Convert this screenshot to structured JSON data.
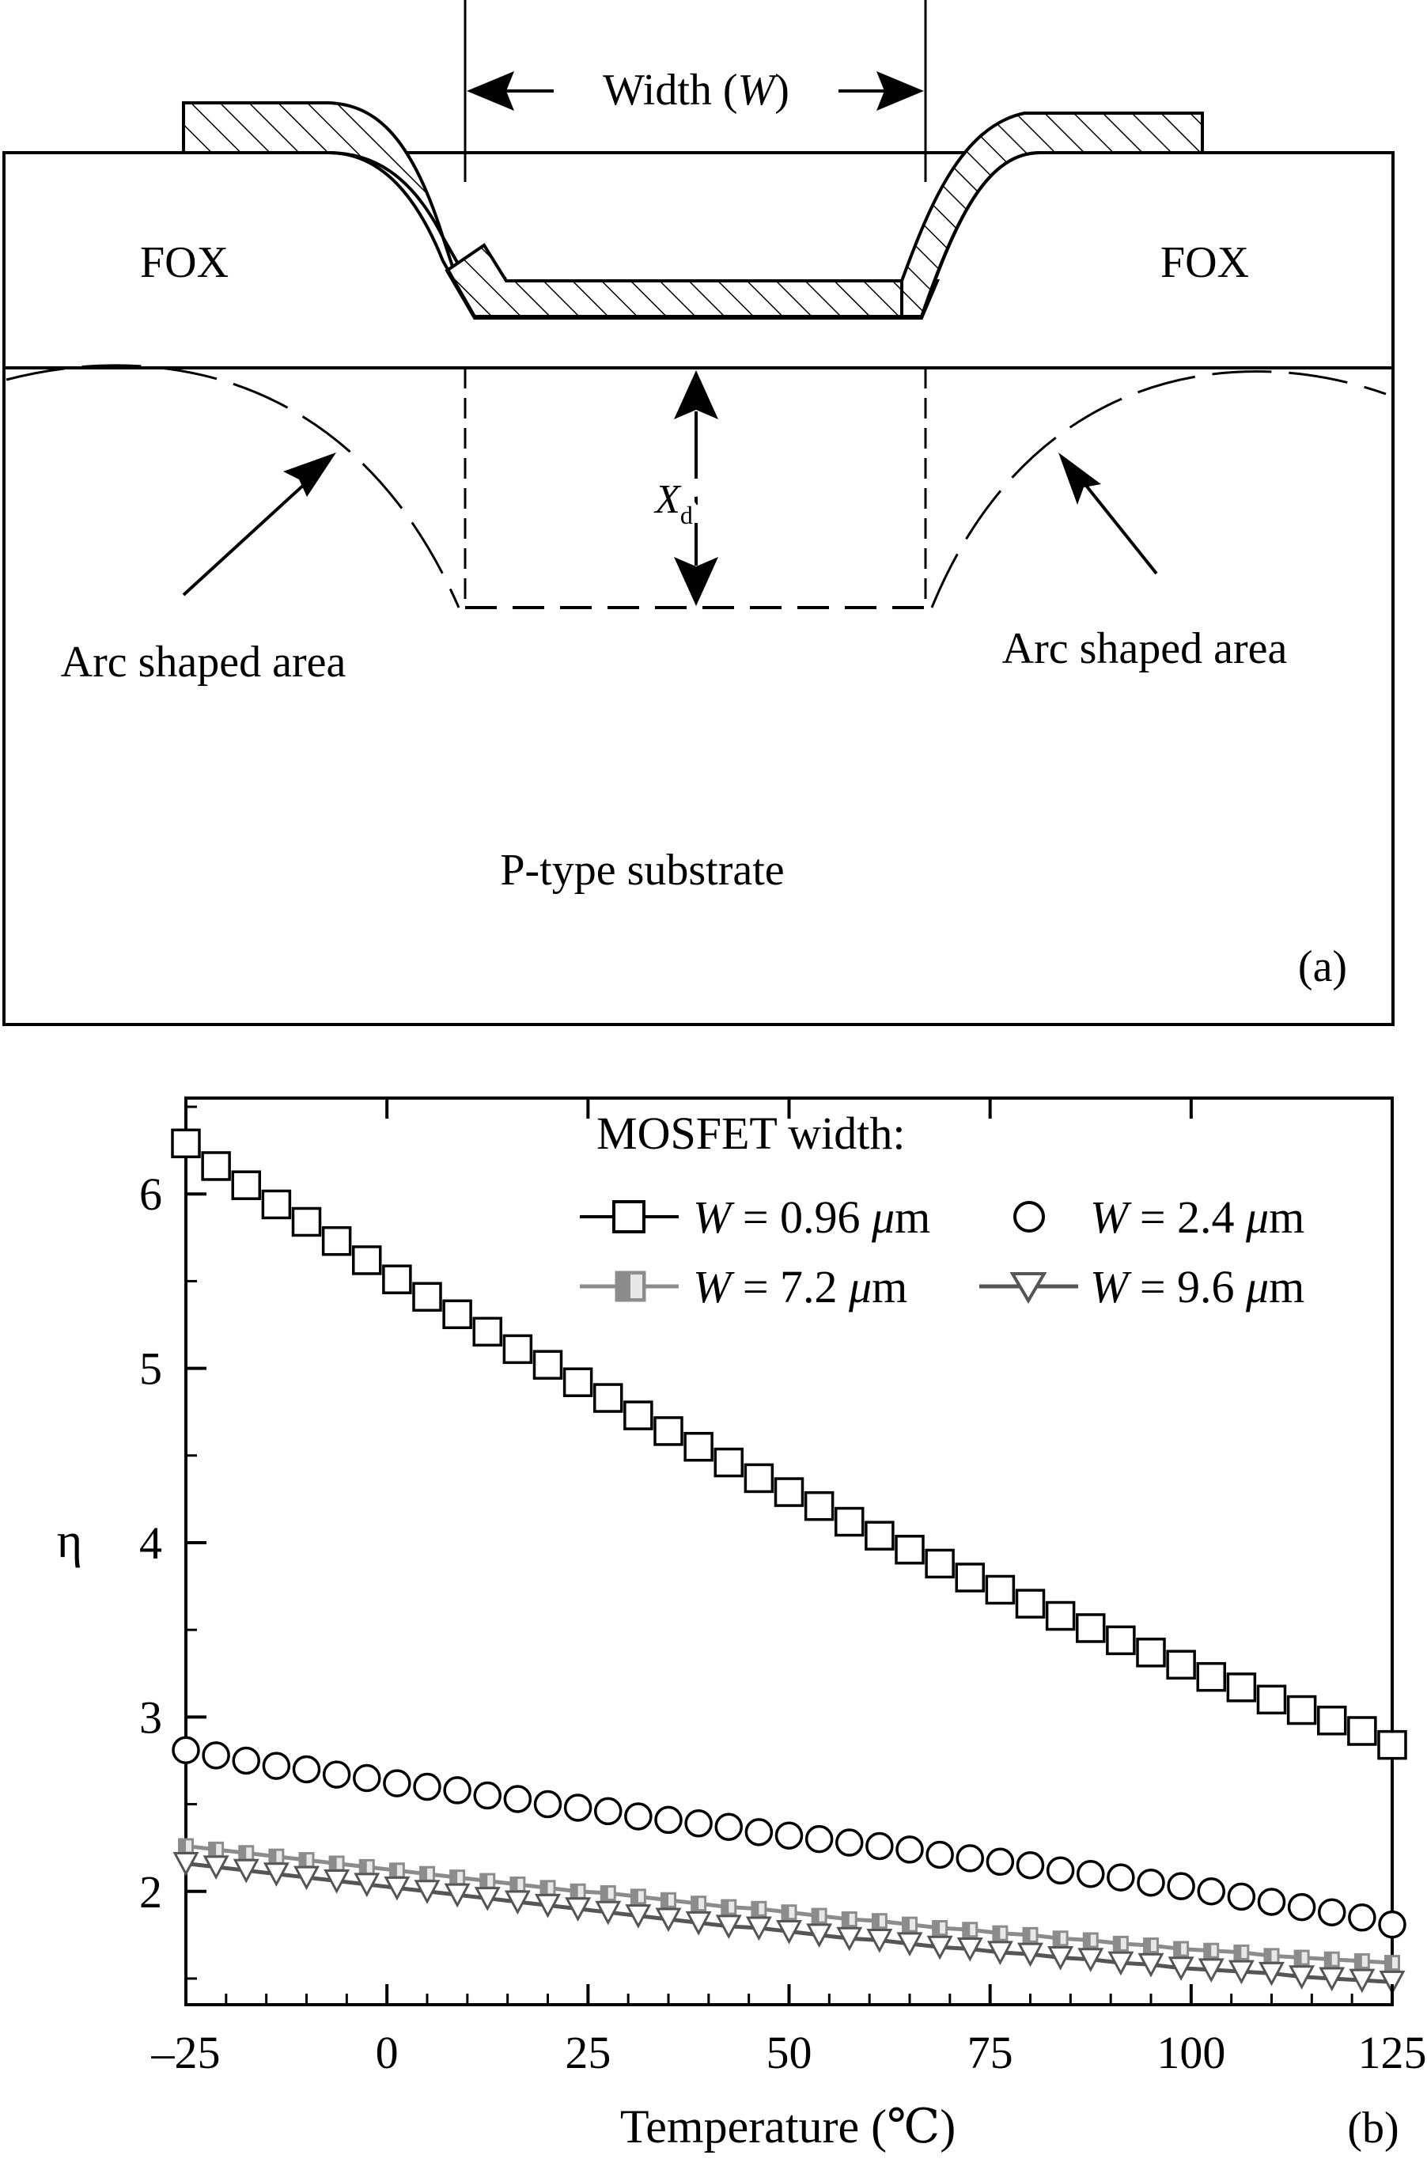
{
  "panel_a": {
    "left_oxide": "FOX",
    "right_oxide": "FOX",
    "width_label_prefix": "Width (",
    "width_label_var": "W",
    "width_label_suffix": ")",
    "depletion_var": "X",
    "depletion_sub": "d",
    "left_arc_label": "Arc shaped area",
    "right_arc_label": "Arc shaped area",
    "substrate_label": "P-type substrate",
    "panel_tag": "(a)"
  },
  "panel_b": {
    "panel_tag": "(b)",
    "legend_title": "MOSFET width:",
    "eq_text": " = ",
    "mu": "μ",
    "unit_m": "m"
  },
  "chart_data": {
    "type": "scatter",
    "title": "",
    "xlabel": "Temperature (℃)",
    "ylabel": "η",
    "xlim": [
      -25,
      125
    ],
    "ylim": [
      1.35,
      6.55
    ],
    "xticks": [
      -25,
      0,
      25,
      50,
      75,
      100,
      125
    ],
    "yticks": [
      2,
      3,
      4,
      5,
      6
    ],
    "grid": false,
    "legend_position": "top-right",
    "x_start": -25,
    "x_step": 3.75,
    "series": [
      {
        "name": "W = 0.96 μm",
        "var": "W",
        "value": "0.96",
        "unit": "μm",
        "marker": "square-open",
        "color": "#000000",
        "line": false,
        "values": [
          6.29,
          6.16,
          6.05,
          5.94,
          5.84,
          5.73,
          5.62,
          5.51,
          5.41,
          5.31,
          5.21,
          5.11,
          5.02,
          4.92,
          4.83,
          4.73,
          4.64,
          4.55,
          4.46,
          4.37,
          4.29,
          4.21,
          4.12,
          4.04,
          3.96,
          3.88,
          3.8,
          3.73,
          3.65,
          3.58,
          3.51,
          3.44,
          3.37,
          3.3,
          3.23,
          3.17,
          3.1,
          3.04,
          2.98,
          2.92,
          2.84
        ]
      },
      {
        "name": "W = 2.4 μm",
        "var": "W",
        "value": "2.4",
        "unit": "μm",
        "marker": "circle-open",
        "color": "#000000",
        "line": false,
        "values": [
          2.81,
          2.78,
          2.75,
          2.72,
          2.7,
          2.67,
          2.65,
          2.62,
          2.6,
          2.58,
          2.55,
          2.53,
          2.5,
          2.48,
          2.46,
          2.43,
          2.41,
          2.39,
          2.37,
          2.34,
          2.32,
          2.3,
          2.28,
          2.26,
          2.24,
          2.21,
          2.19,
          2.17,
          2.15,
          2.12,
          2.1,
          2.08,
          2.05,
          2.03,
          2.0,
          1.97,
          1.94,
          1.91,
          1.88,
          1.85,
          1.81
        ]
      },
      {
        "name": "W = 7.2 μm",
        "var": "W",
        "value": "7.2",
        "unit": "μm",
        "marker": "square-half",
        "color": "#8c8c8c",
        "line": true,
        "values": [
          2.26,
          2.24,
          2.22,
          2.2,
          2.18,
          2.16,
          2.14,
          2.12,
          2.1,
          2.08,
          2.06,
          2.04,
          2.02,
          2.0,
          1.99,
          1.97,
          1.95,
          1.93,
          1.91,
          1.9,
          1.88,
          1.86,
          1.84,
          1.83,
          1.81,
          1.79,
          1.78,
          1.76,
          1.75,
          1.73,
          1.72,
          1.7,
          1.69,
          1.67,
          1.66,
          1.65,
          1.63,
          1.62,
          1.61,
          1.6,
          1.59
        ]
      },
      {
        "name": "W = 9.6 μm",
        "var": "W",
        "value": "9.6",
        "unit": "μm",
        "marker": "triangle-down-open",
        "color": "#555555",
        "line": true,
        "values": [
          2.16,
          2.14,
          2.12,
          2.1,
          2.08,
          2.06,
          2.04,
          2.02,
          2.0,
          1.98,
          1.96,
          1.94,
          1.92,
          1.9,
          1.88,
          1.86,
          1.84,
          1.82,
          1.8,
          1.79,
          1.77,
          1.75,
          1.73,
          1.72,
          1.7,
          1.68,
          1.67,
          1.65,
          1.64,
          1.62,
          1.61,
          1.59,
          1.58,
          1.56,
          1.55,
          1.54,
          1.53,
          1.51,
          1.5,
          1.49,
          1.48
        ]
      }
    ]
  }
}
